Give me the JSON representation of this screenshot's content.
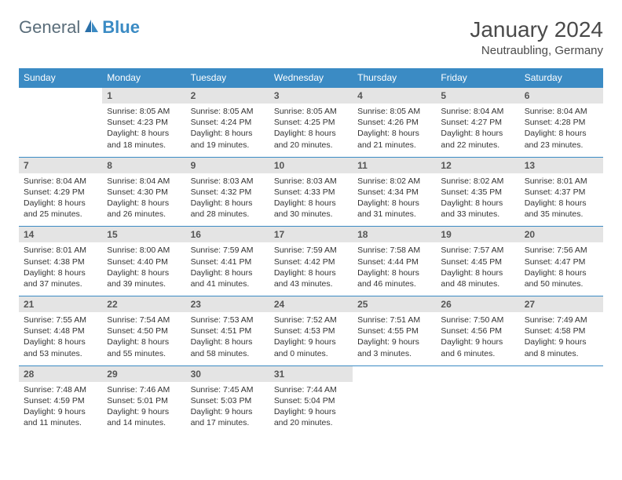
{
  "logo": {
    "general": "General",
    "blue": "Blue"
  },
  "title": "January 2024",
  "location": "Neutraubling, Germany",
  "colors": {
    "header_bg": "#3b8bc4",
    "header_text": "#ffffff",
    "daynum_bg": "#e4e4e4",
    "border": "#3b8bc4",
    "body_text": "#333333"
  },
  "dayHeaders": [
    "Sunday",
    "Monday",
    "Tuesday",
    "Wednesday",
    "Thursday",
    "Friday",
    "Saturday"
  ],
  "weeks": [
    [
      null,
      {
        "n": "1",
        "sr": "8:05 AM",
        "ss": "4:23 PM",
        "dl": "8 hours and 18 minutes."
      },
      {
        "n": "2",
        "sr": "8:05 AM",
        "ss": "4:24 PM",
        "dl": "8 hours and 19 minutes."
      },
      {
        "n": "3",
        "sr": "8:05 AM",
        "ss": "4:25 PM",
        "dl": "8 hours and 20 minutes."
      },
      {
        "n": "4",
        "sr": "8:05 AM",
        "ss": "4:26 PM",
        "dl": "8 hours and 21 minutes."
      },
      {
        "n": "5",
        "sr": "8:04 AM",
        "ss": "4:27 PM",
        "dl": "8 hours and 22 minutes."
      },
      {
        "n": "6",
        "sr": "8:04 AM",
        "ss": "4:28 PM",
        "dl": "8 hours and 23 minutes."
      }
    ],
    [
      {
        "n": "7",
        "sr": "8:04 AM",
        "ss": "4:29 PM",
        "dl": "8 hours and 25 minutes."
      },
      {
        "n": "8",
        "sr": "8:04 AM",
        "ss": "4:30 PM",
        "dl": "8 hours and 26 minutes."
      },
      {
        "n": "9",
        "sr": "8:03 AM",
        "ss": "4:32 PM",
        "dl": "8 hours and 28 minutes."
      },
      {
        "n": "10",
        "sr": "8:03 AM",
        "ss": "4:33 PM",
        "dl": "8 hours and 30 minutes."
      },
      {
        "n": "11",
        "sr": "8:02 AM",
        "ss": "4:34 PM",
        "dl": "8 hours and 31 minutes."
      },
      {
        "n": "12",
        "sr": "8:02 AM",
        "ss": "4:35 PM",
        "dl": "8 hours and 33 minutes."
      },
      {
        "n": "13",
        "sr": "8:01 AM",
        "ss": "4:37 PM",
        "dl": "8 hours and 35 minutes."
      }
    ],
    [
      {
        "n": "14",
        "sr": "8:01 AM",
        "ss": "4:38 PM",
        "dl": "8 hours and 37 minutes."
      },
      {
        "n": "15",
        "sr": "8:00 AM",
        "ss": "4:40 PM",
        "dl": "8 hours and 39 minutes."
      },
      {
        "n": "16",
        "sr": "7:59 AM",
        "ss": "4:41 PM",
        "dl": "8 hours and 41 minutes."
      },
      {
        "n": "17",
        "sr": "7:59 AM",
        "ss": "4:42 PM",
        "dl": "8 hours and 43 minutes."
      },
      {
        "n": "18",
        "sr": "7:58 AM",
        "ss": "4:44 PM",
        "dl": "8 hours and 46 minutes."
      },
      {
        "n": "19",
        "sr": "7:57 AM",
        "ss": "4:45 PM",
        "dl": "8 hours and 48 minutes."
      },
      {
        "n": "20",
        "sr": "7:56 AM",
        "ss": "4:47 PM",
        "dl": "8 hours and 50 minutes."
      }
    ],
    [
      {
        "n": "21",
        "sr": "7:55 AM",
        "ss": "4:48 PM",
        "dl": "8 hours and 53 minutes."
      },
      {
        "n": "22",
        "sr": "7:54 AM",
        "ss": "4:50 PM",
        "dl": "8 hours and 55 minutes."
      },
      {
        "n": "23",
        "sr": "7:53 AM",
        "ss": "4:51 PM",
        "dl": "8 hours and 58 minutes."
      },
      {
        "n": "24",
        "sr": "7:52 AM",
        "ss": "4:53 PM",
        "dl": "9 hours and 0 minutes."
      },
      {
        "n": "25",
        "sr": "7:51 AM",
        "ss": "4:55 PM",
        "dl": "9 hours and 3 minutes."
      },
      {
        "n": "26",
        "sr": "7:50 AM",
        "ss": "4:56 PM",
        "dl": "9 hours and 6 minutes."
      },
      {
        "n": "27",
        "sr": "7:49 AM",
        "ss": "4:58 PM",
        "dl": "9 hours and 8 minutes."
      }
    ],
    [
      {
        "n": "28",
        "sr": "7:48 AM",
        "ss": "4:59 PM",
        "dl": "9 hours and 11 minutes."
      },
      {
        "n": "29",
        "sr": "7:46 AM",
        "ss": "5:01 PM",
        "dl": "9 hours and 14 minutes."
      },
      {
        "n": "30",
        "sr": "7:45 AM",
        "ss": "5:03 PM",
        "dl": "9 hours and 17 minutes."
      },
      {
        "n": "31",
        "sr": "7:44 AM",
        "ss": "5:04 PM",
        "dl": "9 hours and 20 minutes."
      },
      null,
      null,
      null
    ]
  ],
  "labels": {
    "sunrise": "Sunrise:",
    "sunset": "Sunset:",
    "daylight": "Daylight:"
  }
}
